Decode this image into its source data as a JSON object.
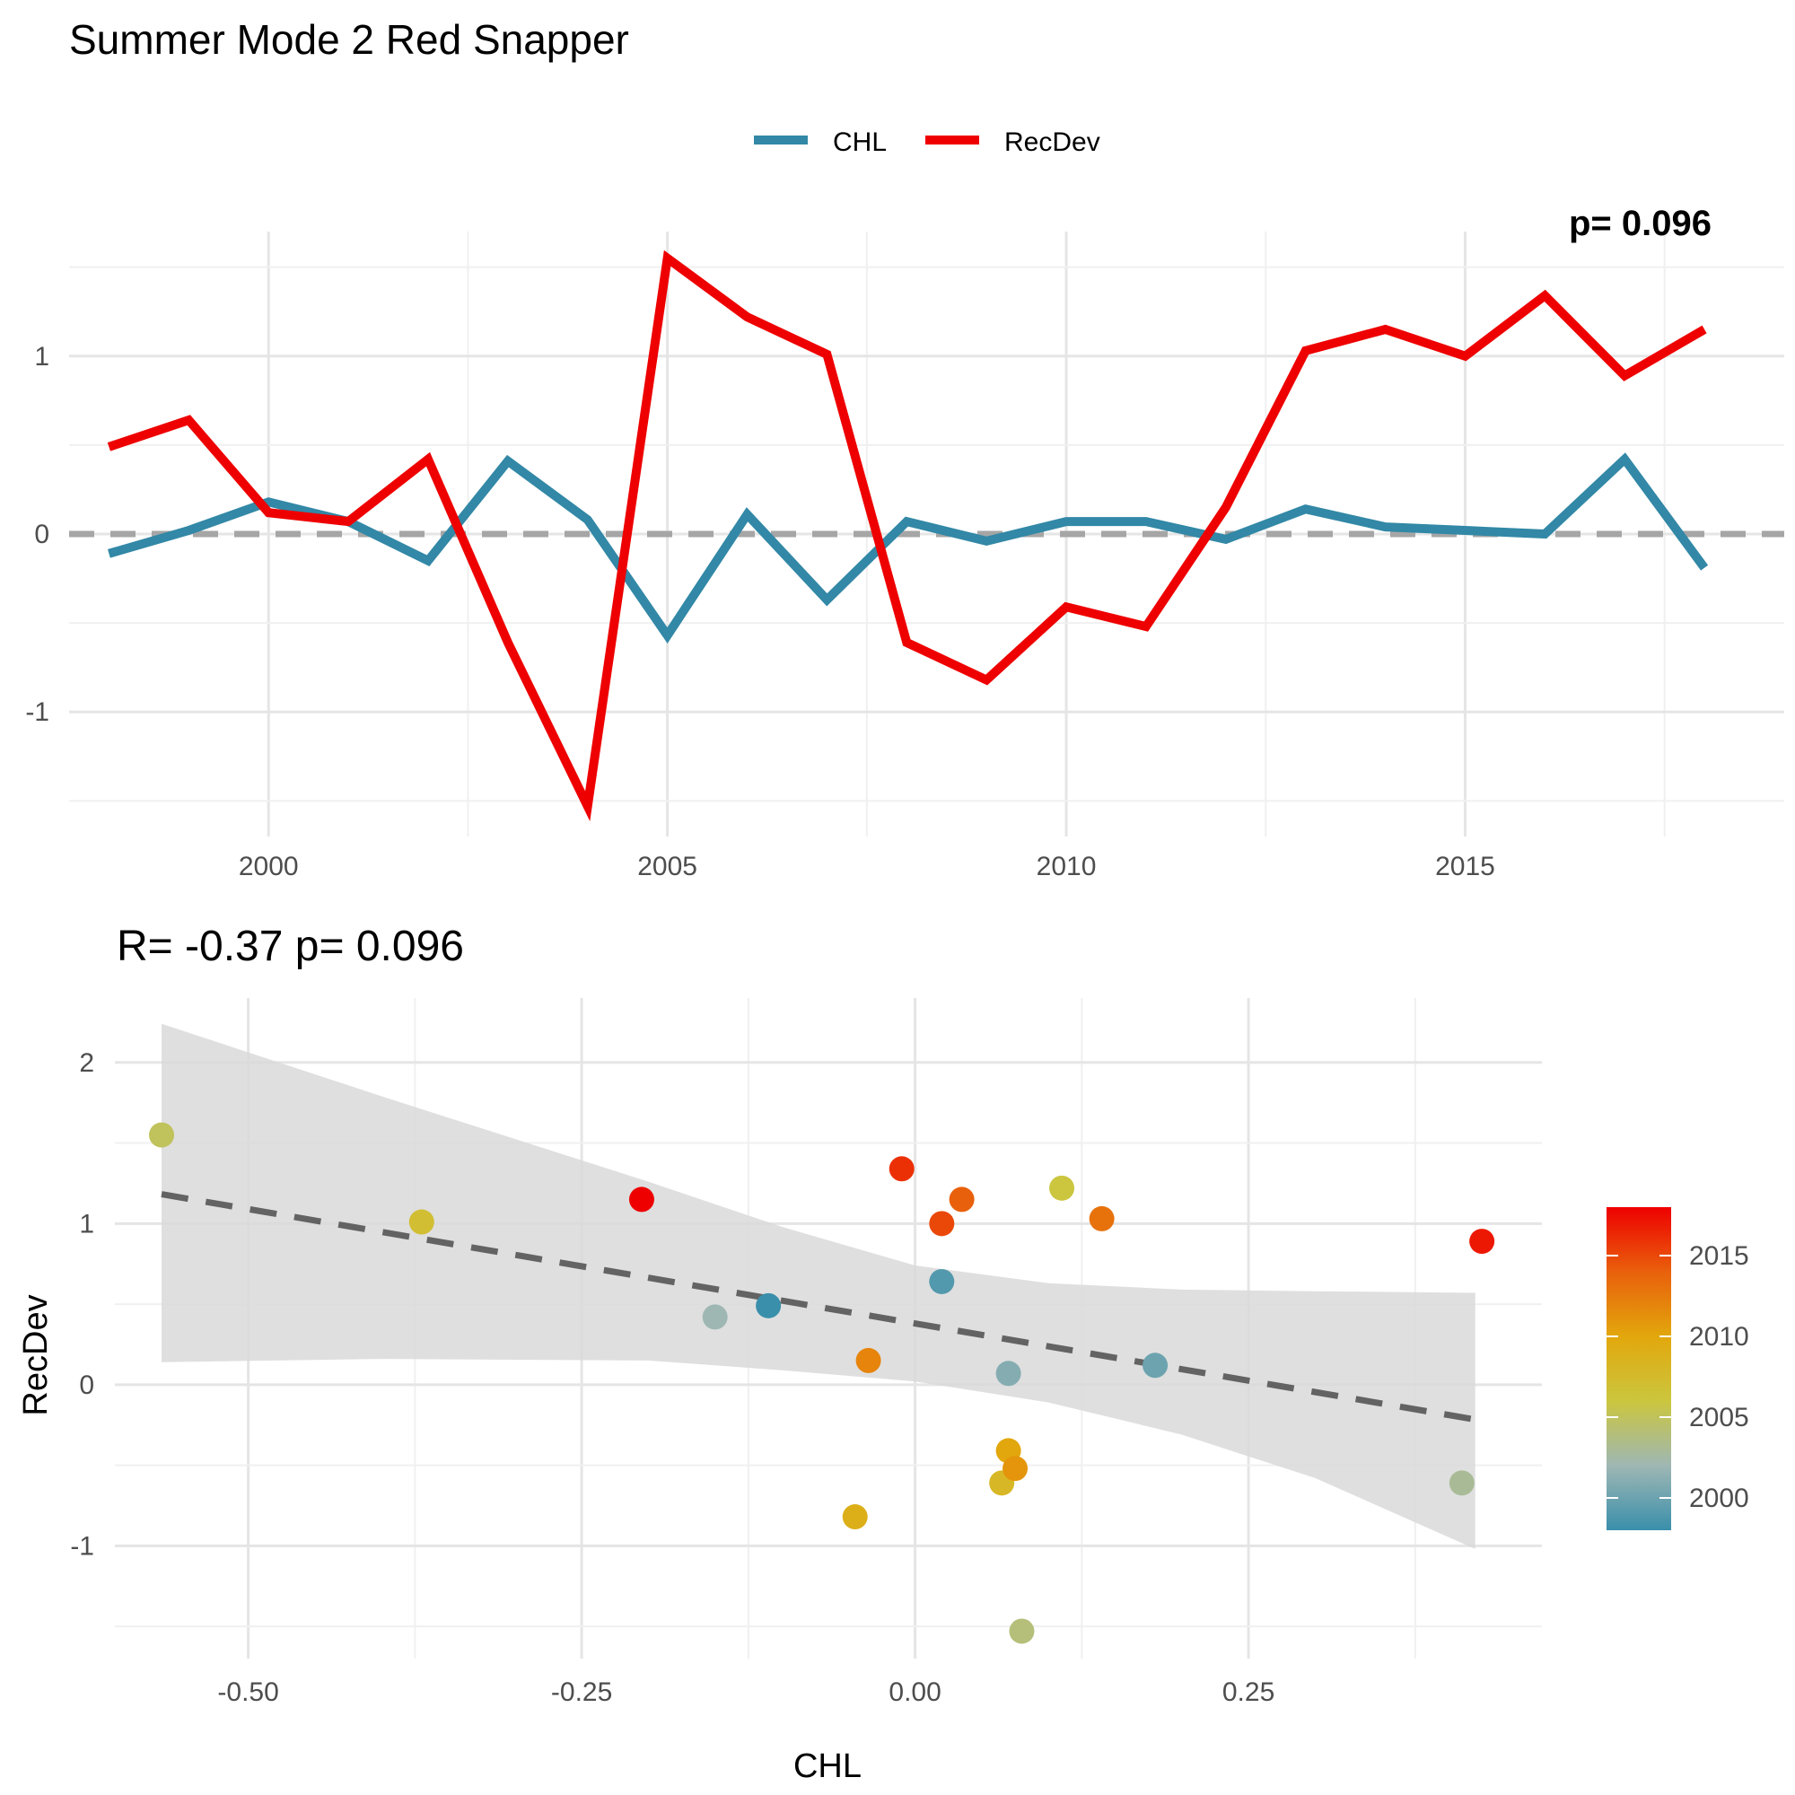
{
  "chart_data": [
    {
      "type": "line",
      "title": "Summer Mode 2 Red Snapper",
      "corner_text": "p= 0.096",
      "xlabel": "",
      "ylabel": "",
      "xlim": [
        1997.5,
        2019
      ],
      "ylim": [
        -1.7,
        1.7
      ],
      "x_ticks": [
        2000,
        2005,
        2010,
        2015
      ],
      "y_ticks": [
        -1,
        0,
        1
      ],
      "x_tick_labels": [
        "2000",
        "2005",
        "2010",
        "2015"
      ],
      "y_tick_labels": [
        "-1",
        "0",
        "1"
      ],
      "grid": true,
      "legend_position": "top",
      "zero_line": 0,
      "x": [
        1998,
        1999,
        2000,
        2001,
        2002,
        2003,
        2004,
        2005,
        2006,
        2007,
        2008,
        2009,
        2010,
        2011,
        2012,
        2013,
        2014,
        2015,
        2016,
        2017,
        2018
      ],
      "series": [
        {
          "name": "CHL",
          "color": "#3288a6",
          "values": [
            -0.11,
            0.02,
            0.18,
            0.07,
            -0.15,
            0.41,
            0.08,
            -0.57,
            0.11,
            -0.37,
            0.07,
            -0.04,
            0.07,
            0.07,
            -0.03,
            0.14,
            0.04,
            0.02,
            0.0,
            0.42,
            -0.19
          ]
        },
        {
          "name": "RecDev",
          "color": "#ee0000",
          "values": [
            0.49,
            0.64,
            0.12,
            0.07,
            0.42,
            -0.61,
            -1.53,
            1.55,
            1.22,
            1.01,
            -0.61,
            -0.82,
            -0.41,
            -0.52,
            0.15,
            1.03,
            1.15,
            1.0,
            1.34,
            0.89,
            1.15
          ]
        }
      ]
    },
    {
      "type": "scatter",
      "title": "R= -0.37  p= 0.096",
      "xlabel": "CHL",
      "ylabel": "RecDev",
      "xlim": [
        -0.6,
        0.47
      ],
      "ylim": [
        -1.7,
        2.4
      ],
      "x_ticks": [
        -0.5,
        -0.25,
        0.0,
        0.25
      ],
      "y_ticks": [
        -1,
        0,
        1,
        2
      ],
      "x_tick_labels": [
        "-0.50",
        "-0.25",
        "0.00",
        "0.25"
      ],
      "y_tick_labels": [
        "-1",
        "0",
        "1",
        "2"
      ],
      "grid": true,
      "legend_position": "right",
      "colorbar": {
        "range": [
          1998,
          2018
        ],
        "ticks": [
          2000,
          2005,
          2010,
          2015
        ],
        "tick_labels": [
          "2000",
          "2005",
          "2010",
          "2015"
        ],
        "colors": [
          "#3a8fab",
          "#9eb7b3",
          "#cbc63e",
          "#e2a70c",
          "#e9600c",
          "#ee0000"
        ]
      },
      "regression": {
        "slope": -1.42,
        "intercept": 0.38,
        "x_range": [
          -0.565,
          0.42
        ],
        "ci_upper": [
          [
            -0.565,
            2.24
          ],
          [
            -0.4,
            1.79
          ],
          [
            -0.2,
            1.26
          ],
          [
            -0.1,
            0.98
          ],
          [
            0.0,
            0.74
          ],
          [
            0.1,
            0.63
          ],
          [
            0.2,
            0.59
          ],
          [
            0.3,
            0.58
          ],
          [
            0.42,
            0.57
          ]
        ],
        "ci_lower": [
          [
            -0.565,
            0.14
          ],
          [
            -0.4,
            0.16
          ],
          [
            -0.2,
            0.15
          ],
          [
            -0.1,
            0.09
          ],
          [
            0.0,
            0.02
          ],
          [
            0.1,
            -0.11
          ],
          [
            0.2,
            -0.31
          ],
          [
            0.3,
            -0.58
          ],
          [
            0.42,
            -1.02
          ]
        ]
      },
      "points": [
        {
          "x": -0.11,
          "y": 0.49,
          "year": 1998
        },
        {
          "x": 0.02,
          "y": 0.64,
          "year": 1999
        },
        {
          "x": 0.18,
          "y": 0.12,
          "year": 2000
        },
        {
          "x": 0.07,
          "y": 0.07,
          "year": 2001
        },
        {
          "x": -0.15,
          "y": 0.42,
          "year": 2002
        },
        {
          "x": 0.41,
          "y": -0.61,
          "year": 2003
        },
        {
          "x": 0.08,
          "y": -1.53,
          "year": 2004
        },
        {
          "x": -0.565,
          "y": 1.55,
          "year": 2005
        },
        {
          "x": 0.11,
          "y": 1.22,
          "year": 2006
        },
        {
          "x": -0.37,
          "y": 1.01,
          "year": 2007
        },
        {
          "x": 0.065,
          "y": -0.61,
          "year": 2008
        },
        {
          "x": -0.045,
          "y": -0.82,
          "year": 2009
        },
        {
          "x": 0.07,
          "y": -0.41,
          "year": 2010
        },
        {
          "x": 0.075,
          "y": -0.52,
          "year": 2011
        },
        {
          "x": -0.035,
          "y": 0.15,
          "year": 2012
        },
        {
          "x": 0.14,
          "y": 1.03,
          "year": 2013
        },
        {
          "x": 0.035,
          "y": 1.15,
          "year": 2014
        },
        {
          "x": 0.02,
          "y": 1.0,
          "year": 2015
        },
        {
          "x": -0.01,
          "y": 1.34,
          "year": 2016
        },
        {
          "x": 0.425,
          "y": 0.89,
          "year": 2017
        },
        {
          "x": -0.205,
          "y": 1.15,
          "year": 2018
        }
      ]
    }
  ]
}
